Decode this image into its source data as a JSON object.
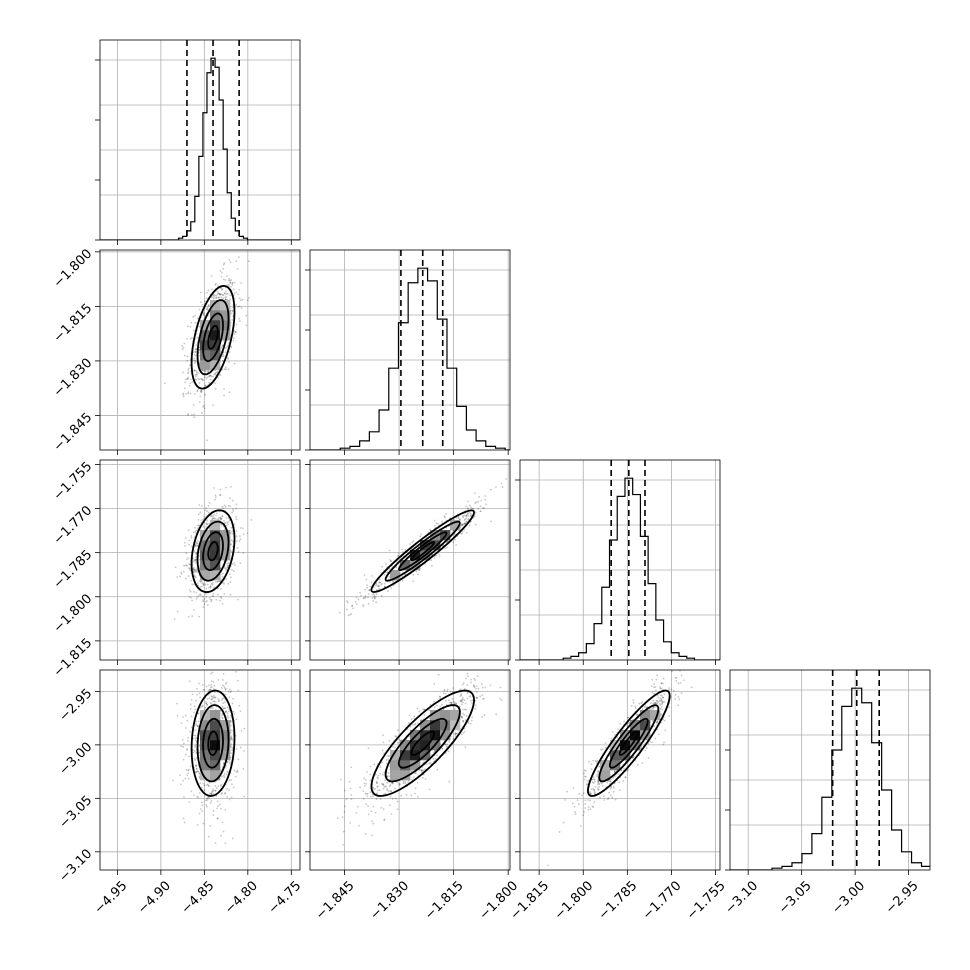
{
  "chart_data": {
    "type": "corner",
    "title": "",
    "grid": true,
    "colors": {
      "line": "#000000",
      "grid": "#b0b0b0",
      "points": "#000000"
    },
    "parameters": [
      {
        "label": "",
        "median": -4.84,
        "quantiles": [
          -4.87,
          -4.84,
          -4.81
        ],
        "range": [
          -4.97,
          -4.74
        ],
        "ticks": [
          -4.95,
          -4.9,
          -4.85,
          -4.8,
          -4.75
        ],
        "tick_labels": [
          "−4.95",
          "−4.90",
          "−4.85",
          "−4.80",
          "−4.75"
        ],
        "hist_counts": [
          1,
          2,
          5,
          10,
          24,
          46,
          70,
          92,
          100,
          95,
          77,
          50,
          26,
          12,
          5,
          2,
          1
        ]
      },
      {
        "label": "",
        "median": -1.8235,
        "quantiles": [
          -1.8295,
          -1.8235,
          -1.818
        ],
        "range": [
          -1.8545,
          -1.7995
        ],
        "ticks": [
          -1.845,
          -1.83,
          -1.815,
          -1.8
        ],
        "tick_labels": [
          "−1.845",
          "−1.830",
          "−1.815",
          "−1.800"
        ],
        "hist_counts": [
          1,
          2,
          5,
          10,
          22,
          45,
          70,
          92,
          100,
          93,
          72,
          45,
          24,
          11,
          5,
          2,
          1
        ]
      },
      {
        "label": "",
        "median": -1.7845,
        "quantiles": [
          -1.7905,
          -1.7845,
          -1.779
        ],
        "range": [
          -1.8215,
          -1.7535
        ],
        "ticks": [
          -1.815,
          -1.8,
          -1.785,
          -1.77,
          -1.755
        ],
        "tick_labels": [
          "−1.815",
          "−1.800",
          "−1.785",
          "−1.770",
          "−1.755"
        ],
        "hist_counts": [
          1,
          2,
          4,
          9,
          20,
          40,
          66,
          90,
          100,
          91,
          68,
          42,
          22,
          10,
          4,
          2,
          1
        ]
      },
      {
        "label": "",
        "median": -2.9985,
        "quantiles": [
          -3.021,
          -2.9985,
          -2.9775
        ],
        "range": [
          -3.117,
          -2.93
        ],
        "ticks": [
          -3.1,
          -3.05,
          -3.0,
          -2.95
        ],
        "tick_labels": [
          "−3.10",
          "−3.05",
          "−3.00",
          "−2.95"
        ],
        "hist_counts": [
          1,
          2,
          4,
          9,
          20,
          40,
          66,
          90,
          100,
          92,
          70,
          44,
          22,
          10,
          4,
          2,
          1
        ]
      }
    ],
    "sigmas": [
      0.011,
      0.0063,
      0.0062,
      0.022
    ],
    "correlations": [
      [
        1.0,
        0.5,
        0.3,
        0.1
      ],
      [
        0.5,
        1.0,
        0.95,
        0.82
      ],
      [
        0.3,
        0.95,
        1.0,
        0.9
      ],
      [
        0.1,
        0.82,
        0.9,
        1.0
      ]
    ]
  }
}
